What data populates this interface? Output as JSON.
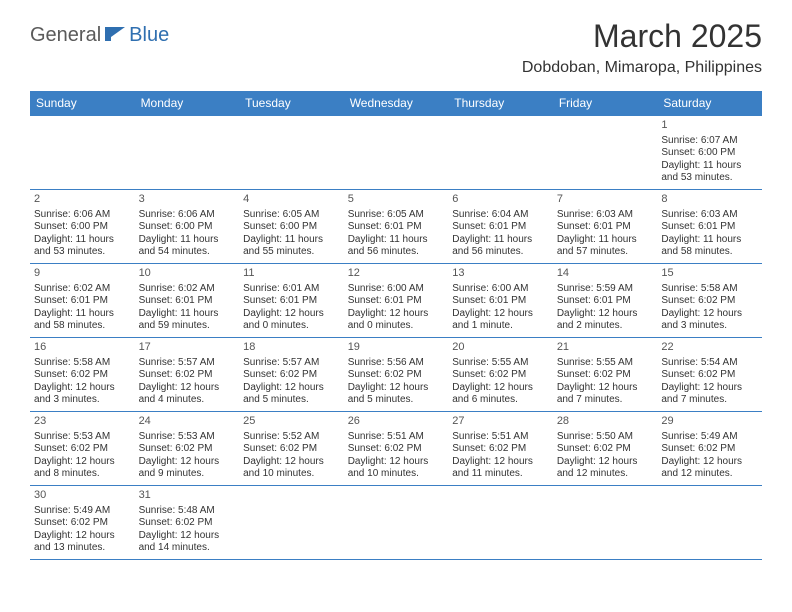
{
  "brand": {
    "part1": "General",
    "part2": "Blue"
  },
  "title": "March 2025",
  "location": "Dobdoban, Mimaropa, Philippines",
  "colors": {
    "header_bg": "#3b7fc4",
    "header_text": "#ffffff",
    "border": "#3b7fc4",
    "body_text": "#333333",
    "brand_gray": "#5a5a5a",
    "brand_blue": "#2f6fb0",
    "background": "#ffffff"
  },
  "typography": {
    "title_fontsize": 32,
    "location_fontsize": 16,
    "header_fontsize": 12,
    "cell_fontsize": 10,
    "daynum_fontsize": 11
  },
  "weekdays": [
    "Sunday",
    "Monday",
    "Tuesday",
    "Wednesday",
    "Thursday",
    "Friday",
    "Saturday"
  ],
  "weeks": [
    [
      null,
      null,
      null,
      null,
      null,
      null,
      {
        "d": "1",
        "sr": "Sunrise: 6:07 AM",
        "ss": "Sunset: 6:00 PM",
        "dl1": "Daylight: 11 hours",
        "dl2": "and 53 minutes."
      }
    ],
    [
      {
        "d": "2",
        "sr": "Sunrise: 6:06 AM",
        "ss": "Sunset: 6:00 PM",
        "dl1": "Daylight: 11 hours",
        "dl2": "and 53 minutes."
      },
      {
        "d": "3",
        "sr": "Sunrise: 6:06 AM",
        "ss": "Sunset: 6:00 PM",
        "dl1": "Daylight: 11 hours",
        "dl2": "and 54 minutes."
      },
      {
        "d": "4",
        "sr": "Sunrise: 6:05 AM",
        "ss": "Sunset: 6:00 PM",
        "dl1": "Daylight: 11 hours",
        "dl2": "and 55 minutes."
      },
      {
        "d": "5",
        "sr": "Sunrise: 6:05 AM",
        "ss": "Sunset: 6:01 PM",
        "dl1": "Daylight: 11 hours",
        "dl2": "and 56 minutes."
      },
      {
        "d": "6",
        "sr": "Sunrise: 6:04 AM",
        "ss": "Sunset: 6:01 PM",
        "dl1": "Daylight: 11 hours",
        "dl2": "and 56 minutes."
      },
      {
        "d": "7",
        "sr": "Sunrise: 6:03 AM",
        "ss": "Sunset: 6:01 PM",
        "dl1": "Daylight: 11 hours",
        "dl2": "and 57 minutes."
      },
      {
        "d": "8",
        "sr": "Sunrise: 6:03 AM",
        "ss": "Sunset: 6:01 PM",
        "dl1": "Daylight: 11 hours",
        "dl2": "and 58 minutes."
      }
    ],
    [
      {
        "d": "9",
        "sr": "Sunrise: 6:02 AM",
        "ss": "Sunset: 6:01 PM",
        "dl1": "Daylight: 11 hours",
        "dl2": "and 58 minutes."
      },
      {
        "d": "10",
        "sr": "Sunrise: 6:02 AM",
        "ss": "Sunset: 6:01 PM",
        "dl1": "Daylight: 11 hours",
        "dl2": "and 59 minutes."
      },
      {
        "d": "11",
        "sr": "Sunrise: 6:01 AM",
        "ss": "Sunset: 6:01 PM",
        "dl1": "Daylight: 12 hours",
        "dl2": "and 0 minutes."
      },
      {
        "d": "12",
        "sr": "Sunrise: 6:00 AM",
        "ss": "Sunset: 6:01 PM",
        "dl1": "Daylight: 12 hours",
        "dl2": "and 0 minutes."
      },
      {
        "d": "13",
        "sr": "Sunrise: 6:00 AM",
        "ss": "Sunset: 6:01 PM",
        "dl1": "Daylight: 12 hours",
        "dl2": "and 1 minute."
      },
      {
        "d": "14",
        "sr": "Sunrise: 5:59 AM",
        "ss": "Sunset: 6:01 PM",
        "dl1": "Daylight: 12 hours",
        "dl2": "and 2 minutes."
      },
      {
        "d": "15",
        "sr": "Sunrise: 5:58 AM",
        "ss": "Sunset: 6:02 PM",
        "dl1": "Daylight: 12 hours",
        "dl2": "and 3 minutes."
      }
    ],
    [
      {
        "d": "16",
        "sr": "Sunrise: 5:58 AM",
        "ss": "Sunset: 6:02 PM",
        "dl1": "Daylight: 12 hours",
        "dl2": "and 3 minutes."
      },
      {
        "d": "17",
        "sr": "Sunrise: 5:57 AM",
        "ss": "Sunset: 6:02 PM",
        "dl1": "Daylight: 12 hours",
        "dl2": "and 4 minutes."
      },
      {
        "d": "18",
        "sr": "Sunrise: 5:57 AM",
        "ss": "Sunset: 6:02 PM",
        "dl1": "Daylight: 12 hours",
        "dl2": "and 5 minutes."
      },
      {
        "d": "19",
        "sr": "Sunrise: 5:56 AM",
        "ss": "Sunset: 6:02 PM",
        "dl1": "Daylight: 12 hours",
        "dl2": "and 5 minutes."
      },
      {
        "d": "20",
        "sr": "Sunrise: 5:55 AM",
        "ss": "Sunset: 6:02 PM",
        "dl1": "Daylight: 12 hours",
        "dl2": "and 6 minutes."
      },
      {
        "d": "21",
        "sr": "Sunrise: 5:55 AM",
        "ss": "Sunset: 6:02 PM",
        "dl1": "Daylight: 12 hours",
        "dl2": "and 7 minutes."
      },
      {
        "d": "22",
        "sr": "Sunrise: 5:54 AM",
        "ss": "Sunset: 6:02 PM",
        "dl1": "Daylight: 12 hours",
        "dl2": "and 7 minutes."
      }
    ],
    [
      {
        "d": "23",
        "sr": "Sunrise: 5:53 AM",
        "ss": "Sunset: 6:02 PM",
        "dl1": "Daylight: 12 hours",
        "dl2": "and 8 minutes."
      },
      {
        "d": "24",
        "sr": "Sunrise: 5:53 AM",
        "ss": "Sunset: 6:02 PM",
        "dl1": "Daylight: 12 hours",
        "dl2": "and 9 minutes."
      },
      {
        "d": "25",
        "sr": "Sunrise: 5:52 AM",
        "ss": "Sunset: 6:02 PM",
        "dl1": "Daylight: 12 hours",
        "dl2": "and 10 minutes."
      },
      {
        "d": "26",
        "sr": "Sunrise: 5:51 AM",
        "ss": "Sunset: 6:02 PM",
        "dl1": "Daylight: 12 hours",
        "dl2": "and 10 minutes."
      },
      {
        "d": "27",
        "sr": "Sunrise: 5:51 AM",
        "ss": "Sunset: 6:02 PM",
        "dl1": "Daylight: 12 hours",
        "dl2": "and 11 minutes."
      },
      {
        "d": "28",
        "sr": "Sunrise: 5:50 AM",
        "ss": "Sunset: 6:02 PM",
        "dl1": "Daylight: 12 hours",
        "dl2": "and 12 minutes."
      },
      {
        "d": "29",
        "sr": "Sunrise: 5:49 AM",
        "ss": "Sunset: 6:02 PM",
        "dl1": "Daylight: 12 hours",
        "dl2": "and 12 minutes."
      }
    ],
    [
      {
        "d": "30",
        "sr": "Sunrise: 5:49 AM",
        "ss": "Sunset: 6:02 PM",
        "dl1": "Daylight: 12 hours",
        "dl2": "and 13 minutes."
      },
      {
        "d": "31",
        "sr": "Sunrise: 5:48 AM",
        "ss": "Sunset: 6:02 PM",
        "dl1": "Daylight: 12 hours",
        "dl2": "and 14 minutes."
      },
      null,
      null,
      null,
      null,
      null
    ]
  ]
}
